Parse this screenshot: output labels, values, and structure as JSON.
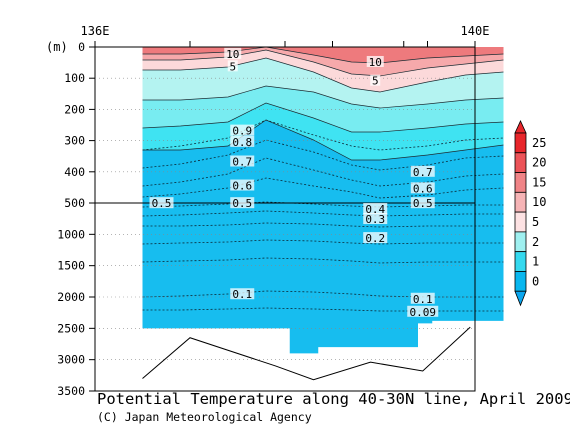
{
  "chart_data": {
    "type": "heatmap",
    "title": "Potential Temperature along 40-30N line, April 2009",
    "credit": "(C) Japan Meteorological Agency",
    "x_axis": {
      "ticks": [
        "136E",
        "140E"
      ],
      "range": [
        136,
        140
      ],
      "minor_ticks_lon": [
        137,
        138,
        138.5,
        139.25,
        139.5,
        140
      ]
    },
    "y_axis": {
      "unit_label": "(m)",
      "upper_panel": {
        "range": [
          0,
          500
        ],
        "ticks": [
          0,
          100,
          200,
          300,
          400,
          500
        ]
      },
      "lower_panel": {
        "range": [
          500,
          3500
        ],
        "ticks": [
          1000,
          1500,
          2000,
          2500,
          3000,
          3500
        ]
      }
    },
    "section_x_lon": [
      136.5,
      140.3
    ],
    "colorbar": {
      "labels": [
        "25",
        "20",
        "15",
        "10",
        "5",
        "2",
        "1",
        "0"
      ],
      "colors": [
        "#e8262b",
        "#ec5358",
        "#f08487",
        "#f6b4b6",
        "#fde2e3",
        "#9ff0f0",
        "#35d9ef",
        "#09b7ef"
      ]
    },
    "contours": [
      {
        "label": "10",
        "lon": 137.45,
        "depth": 22
      },
      {
        "label": "5",
        "lon": 137.45,
        "depth": 62
      },
      {
        "label": "10",
        "lon": 138.95,
        "depth": 48
      },
      {
        "label": "5",
        "lon": 138.95,
        "depth": 108
      },
      {
        "label": "0.9",
        "lon": 137.55,
        "depth": 268
      },
      {
        "label": "0.8",
        "lon": 137.55,
        "depth": 304
      },
      {
        "label": "0.7",
        "lon": 137.55,
        "depth": 367
      },
      {
        "label": "0.7",
        "lon": 139.45,
        "depth": 400
      },
      {
        "label": "0.6",
        "lon": 137.55,
        "depth": 444
      },
      {
        "label": "0.6",
        "lon": 139.45,
        "depth": 453
      },
      {
        "label": "0.5",
        "lon": 136.7,
        "depth": 503
      },
      {
        "label": "0.5",
        "lon": 137.55,
        "depth": 503
      },
      {
        "label": "0.5",
        "lon": 139.45,
        "depth": 503
      },
      {
        "label": "0.4",
        "lon": 138.95,
        "depth": 596
      },
      {
        "label": "0.3",
        "lon": 138.95,
        "depth": 756
      },
      {
        "label": "0.2",
        "lon": 138.95,
        "depth": 1060
      },
      {
        "label": "0.1",
        "lon": 137.55,
        "depth": 1956
      },
      {
        "label": "0.1",
        "lon": 139.45,
        "depth": 2028
      },
      {
        "label": "0.09",
        "lon": 139.45,
        "depth": 2236
      }
    ],
    "section_floor": [
      {
        "lon": 136.5,
        "depth": 2500
      },
      {
        "lon": 137.2,
        "depth": 2500
      },
      {
        "lon": 138.05,
        "depth": 2500
      },
      {
        "lon": 138.05,
        "depth": 2900
      },
      {
        "lon": 138.35,
        "depth": 2900
      },
      {
        "lon": 138.35,
        "depth": 2800
      },
      {
        "lon": 139.4,
        "depth": 2800
      },
      {
        "lon": 139.4,
        "depth": 2420
      },
      {
        "lon": 139.55,
        "depth": 2420
      },
      {
        "lon": 139.55,
        "depth": 2380
      },
      {
        "lon": 139.95,
        "depth": 2380
      },
      {
        "lon": 140.3,
        "depth": 2380
      }
    ],
    "bottom_profile": [
      {
        "lon": 136.5,
        "depth": 3300
      },
      {
        "lon": 137.0,
        "depth": 2650
      },
      {
        "lon": 137.9,
        "depth": 3100
      },
      {
        "lon": 138.3,
        "depth": 3320
      },
      {
        "lon": 138.9,
        "depth": 3040
      },
      {
        "lon": 139.45,
        "depth": 3180
      },
      {
        "lon": 139.95,
        "depth": 2480
      }
    ]
  }
}
